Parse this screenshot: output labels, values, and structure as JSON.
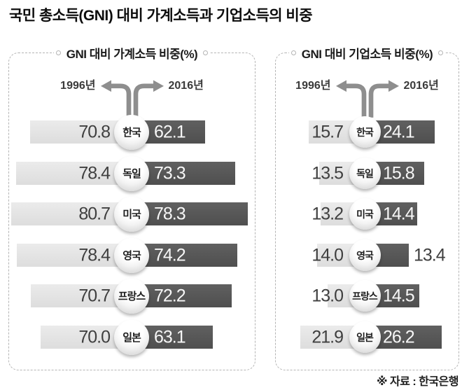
{
  "page": {
    "title": "국민 총소득(GNI) 대비 가계소득과 기업소득의 비중",
    "source": "※ 자료 : 한국은행"
  },
  "colors": {
    "bar_1996_light": "#e4e4e4",
    "bar_2016_dark": "#575757",
    "arrow_gray": "#8e8e8e",
    "value_dark_text": "#3f3f3f",
    "value_light_text": "#f7f7f7"
  },
  "chart_data": [
    {
      "type": "bar",
      "layout": "diverging-horizontal",
      "title": "GNI 대비 가계소득 비중(%)",
      "legend": [
        "1996년",
        "2016년"
      ],
      "legend_position": "top",
      "categories": [
        "한국",
        "독일",
        "미국",
        "영국",
        "프랑스",
        "일본"
      ],
      "series": [
        {
          "name": "1996년",
          "values": [
            70.8,
            78.4,
            80.7,
            78.4,
            70.7,
            70.0
          ]
        },
        {
          "name": "2016년",
          "values": [
            62.1,
            73.3,
            78.3,
            74.2,
            72.2,
            63.1
          ]
        }
      ]
    },
    {
      "type": "bar",
      "layout": "diverging-horizontal",
      "title": "GNI 대비 기업소득 비중(%)",
      "legend": [
        "1996년",
        "2016년"
      ],
      "legend_position": "top",
      "categories": [
        "한국",
        "독일",
        "미국",
        "영국",
        "프랑스",
        "일본"
      ],
      "series": [
        {
          "name": "1996년",
          "values": [
            15.7,
            13.5,
            13.2,
            14.0,
            13.0,
            21.9
          ]
        },
        {
          "name": "2016년",
          "values": [
            24.1,
            15.8,
            14.4,
            13.4,
            14.5,
            26.2
          ]
        }
      ]
    }
  ]
}
